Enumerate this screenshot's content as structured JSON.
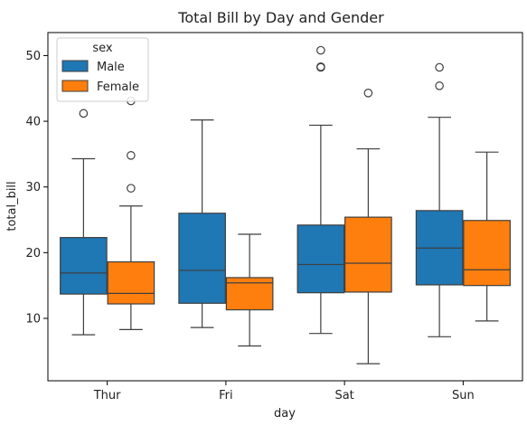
{
  "chart_data": {
    "type": "box",
    "title": "Total Bill by Day and Gender",
    "xlabel": "day",
    "ylabel": "total_bill",
    "categories": [
      "Thur",
      "Fri",
      "Sat",
      "Sun"
    ],
    "ylim": [
      0.5,
      53.5
    ],
    "yticks": [
      10,
      20,
      30,
      40,
      50
    ],
    "grid": false,
    "legend": {
      "title": "sex",
      "placement": "top-left"
    },
    "series": [
      {
        "name": "Male",
        "color": "#1f77b4",
        "boxes": [
          {
            "category": "Thur",
            "whisker_low": 7.5,
            "q1": 13.7,
            "median": 16.9,
            "q3": 22.3,
            "whisker_high": 34.3,
            "outliers": [
              41.2
            ]
          },
          {
            "category": "Fri",
            "whisker_low": 8.6,
            "q1": 12.3,
            "median": 17.3,
            "q3": 26.0,
            "whisker_high": 40.2,
            "outliers": []
          },
          {
            "category": "Sat",
            "whisker_low": 7.7,
            "q1": 13.9,
            "median": 18.2,
            "q3": 24.2,
            "whisker_high": 39.4,
            "outliers": [
              48.2,
              48.3,
              50.8
            ]
          },
          {
            "category": "Sun",
            "whisker_low": 7.2,
            "q1": 15.1,
            "median": 20.7,
            "q3": 26.4,
            "whisker_high": 40.6,
            "outliers": [
              45.4,
              48.2
            ]
          }
        ]
      },
      {
        "name": "Female",
        "color": "#ff7f0e",
        "boxes": [
          {
            "category": "Thur",
            "whisker_low": 8.3,
            "q1": 12.2,
            "median": 13.8,
            "q3": 18.6,
            "whisker_high": 27.1,
            "outliers": [
              29.8,
              34.8,
              43.1
            ]
          },
          {
            "category": "Fri",
            "whisker_low": 5.8,
            "q1": 11.3,
            "median": 15.4,
            "q3": 16.2,
            "whisker_high": 22.8,
            "outliers": []
          },
          {
            "category": "Sat",
            "whisker_low": 3.1,
            "q1": 14.0,
            "median": 18.4,
            "q3": 25.4,
            "whisker_high": 35.8,
            "outliers": [
              44.3
            ]
          },
          {
            "category": "Sun",
            "whisker_low": 9.6,
            "q1": 15.0,
            "median": 17.4,
            "q3": 24.9,
            "whisker_high": 35.3,
            "outliers": []
          }
        ]
      }
    ]
  }
}
